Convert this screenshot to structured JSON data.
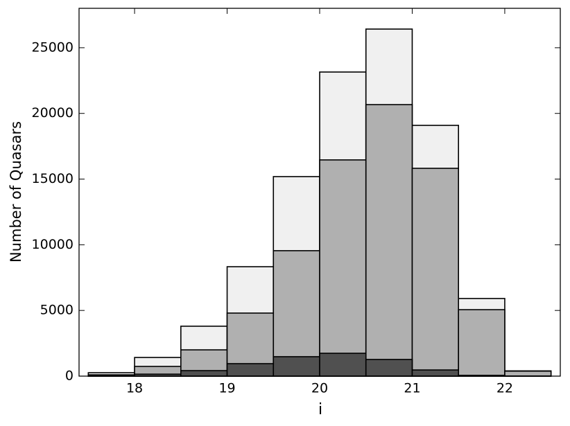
{
  "chart_data": {
    "type": "histogram",
    "xlabel": "i",
    "ylabel": "Number of Quasars",
    "bins": [
      17.5,
      18,
      18.5,
      19,
      19.5,
      20,
      20.5,
      21,
      21.5,
      22,
      22.5
    ],
    "series": [
      {
        "color": "#f0f0f0",
        "values": [
          260,
          1420,
          3800,
          8330,
          15190,
          23150,
          26420,
          19090,
          5910,
          400
        ]
      },
      {
        "color": "#b0b0b0",
        "values": [
          100,
          740,
          2000,
          4800,
          9550,
          16460,
          20670,
          15820,
          5060,
          380
        ]
      },
      {
        "color": "#505050",
        "values": [
          50,
          150,
          420,
          950,
          1480,
          1740,
          1270,
          470,
          60,
          10
        ]
      }
    ],
    "xlim": [
      17.4,
      22.6
    ],
    "ylim": [
      0,
      28000
    ],
    "xticks": [
      18,
      19,
      20,
      21,
      22
    ],
    "yticks": [
      0,
      5000,
      10000,
      15000,
      20000,
      25000
    ]
  }
}
